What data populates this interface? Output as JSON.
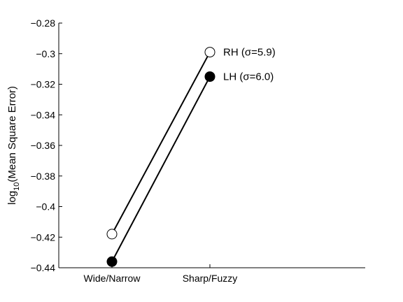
{
  "chart_data": {
    "type": "line",
    "title": "",
    "xlabel": "",
    "ylabel": "log10(Mean Square Error)",
    "ylabel_parts": {
      "pre": "log",
      "sub": "10",
      "post": "(Mean Square Error)"
    },
    "categories": [
      "Wide/Narrow",
      "Sharp/Fuzzy"
    ],
    "ylim": [
      -0.44,
      -0.28
    ],
    "yticks": [
      -0.28,
      -0.3,
      -0.32,
      -0.34,
      -0.36,
      -0.38,
      -0.4,
      -0.42,
      -0.44
    ],
    "ytick_labels": [
      "−0.28",
      "−0.3",
      "−0.32",
      "−0.34",
      "−0.36",
      "−0.38",
      "−0.4",
      "−0.42",
      "−0.44"
    ],
    "grid": false,
    "series": [
      {
        "name": "RH (σ=5.9)",
        "values": [
          -0.418,
          -0.299
        ],
        "marker": "open-circle",
        "color": "#000000"
      },
      {
        "name": "LH (σ=6.0)",
        "values": [
          -0.436,
          -0.315
        ],
        "marker": "filled-circle",
        "color": "#000000"
      }
    ]
  }
}
